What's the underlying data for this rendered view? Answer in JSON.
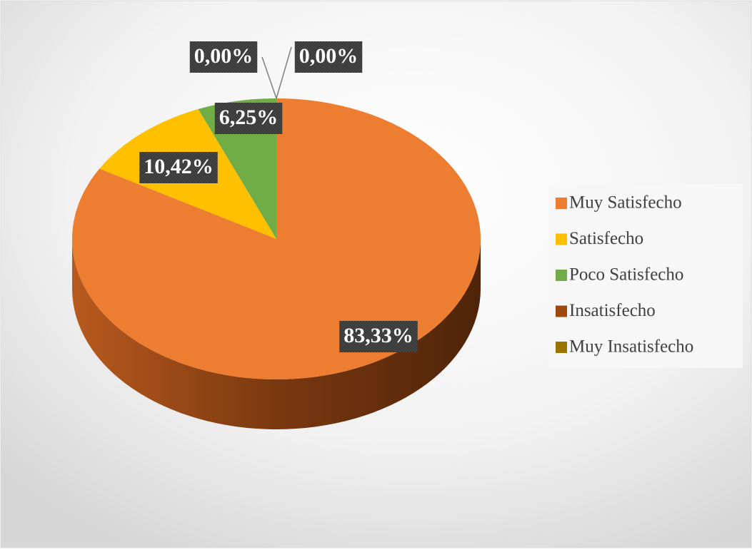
{
  "chart_data": {
    "type": "pie",
    "categories": [
      "Muy Satisfecho",
      "Satisfecho",
      "Poco Satisfecho",
      "Insatisfecho",
      "Muy Insatisfecho"
    ],
    "values": [
      83.33,
      10.42,
      6.25,
      0,
      0
    ],
    "value_labels": [
      "83,33%",
      "10,42%",
      "6,25%",
      "0,00%",
      "0,00%"
    ],
    "colors": [
      "#ed7d31",
      "#ffc000",
      "#70ad47",
      "#9e480e",
      "#997300"
    ],
    "legend": "right"
  }
}
